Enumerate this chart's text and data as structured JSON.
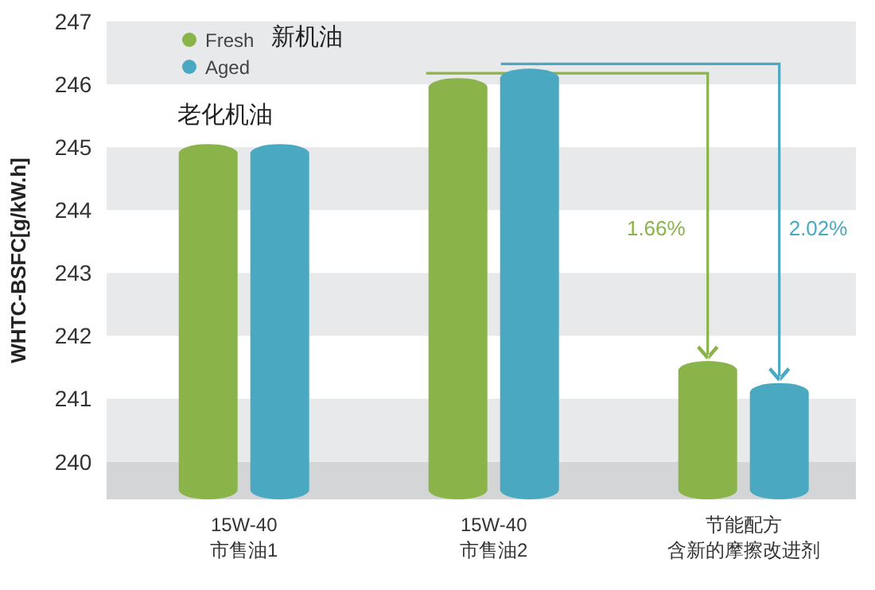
{
  "chart_data": {
    "type": "bar",
    "ylabel": "WHTC-BSFC[g/kW.h]",
    "categories": [
      "15W-40 市售油1",
      "15W-40 市售油2",
      "节能配方含新的摩擦改进剂"
    ],
    "series": [
      {
        "name": "Fresh",
        "color": "#8ab34a",
        "values": [
          245.05,
          246.1,
          241.6
        ]
      },
      {
        "name": "Aged",
        "color": "#4aa8c1",
        "values": [
          245.05,
          246.25,
          241.25
        ]
      }
    ],
    "ylim": [
      239.4,
      247
    ],
    "yticks": [
      240,
      241,
      242,
      243,
      244,
      245,
      246,
      247
    ],
    "bands": [
      {
        "axis": "y",
        "from": 239.4,
        "to": 240,
        "color": "#d4d5d6"
      },
      {
        "axis": "y",
        "from": 240,
        "to": 241,
        "color": "#e8e9ea"
      },
      {
        "axis": "y",
        "from": 242,
        "to": 243,
        "color": "#e8e9ea"
      },
      {
        "axis": "y",
        "from": 244,
        "to": 245,
        "color": "#e8e9ea"
      },
      {
        "axis": "y",
        "from": 246,
        "to": 247,
        "color": "#e8e9ea"
      }
    ],
    "legend": "top left",
    "annotations": [
      "新机油",
      "老化机油",
      "1.66%",
      "2.02%"
    ]
  }
}
